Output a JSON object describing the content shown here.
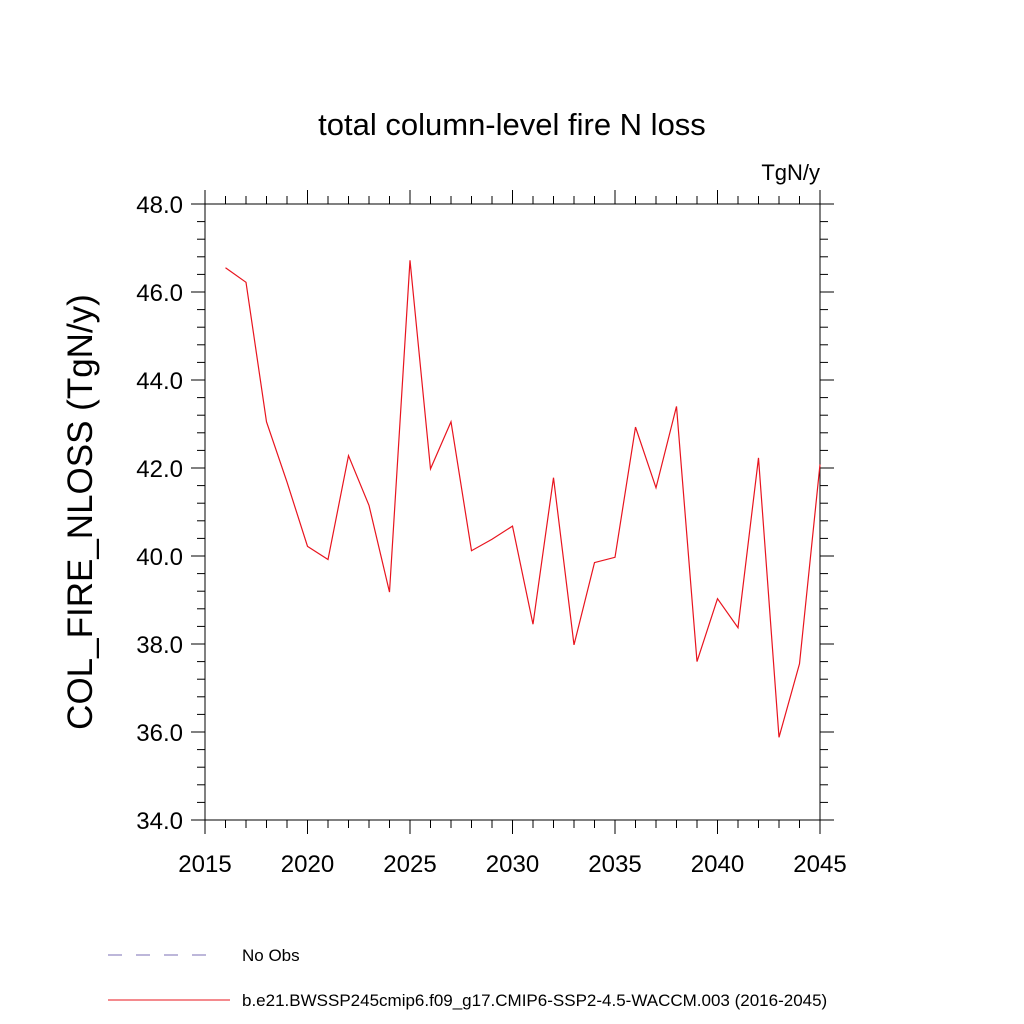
{
  "chart_data": {
    "type": "line",
    "title": "total column-level fire N loss",
    "units": "TgN/y",
    "ylabel": "COL_FIRE_NLOSS  (TgN/y)",
    "xlabel": "",
    "xlim": [
      2015,
      2045
    ],
    "ylim": [
      34.0,
      48.0
    ],
    "x_ticks": [
      2015,
      2020,
      2025,
      2030,
      2035,
      2040,
      2045
    ],
    "x_tick_labels": [
      "2015",
      "2020",
      "2025",
      "2030",
      "2035",
      "2040",
      "2045"
    ],
    "y_ticks": [
      34.0,
      36.0,
      38.0,
      40.0,
      42.0,
      44.0,
      46.0,
      48.0
    ],
    "y_tick_labels": [
      "34.0",
      "36.0",
      "38.0",
      "40.0",
      "42.0",
      "44.0",
      "46.0",
      "48.0"
    ],
    "grid": false,
    "legend_position": "bottom",
    "series": [
      {
        "name": "b.e21.BWSSP245cmip6.f09_g17.CMIP6-SSP2-4.5-WACCM.003 (2016-2045)",
        "color": "#e8141e",
        "dash": "solid",
        "x": [
          2016,
          2017,
          2018,
          2019,
          2020,
          2021,
          2022,
          2023,
          2024,
          2025,
          2026,
          2027,
          2028,
          2029,
          2030,
          2031,
          2032,
          2033,
          2034,
          2035,
          2036,
          2037,
          2038,
          2039,
          2040,
          2041,
          2042,
          2043,
          2044,
          2045
        ],
        "y": [
          46.55,
          46.22,
          43.05,
          41.68,
          40.22,
          39.92,
          42.28,
          41.15,
          39.18,
          46.72,
          41.98,
          43.05,
          40.12,
          40.38,
          40.68,
          38.45,
          41.78,
          37.98,
          39.85,
          39.97,
          42.93,
          41.55,
          43.4,
          37.6,
          39.03,
          38.37,
          42.23,
          35.88,
          37.55,
          42.08
        ]
      }
    ],
    "legend": [
      {
        "label": "No Obs",
        "color": "#7b6fb5",
        "dash": "dashed"
      },
      {
        "label": "b.e21.BWSSP245cmip6.f09_g17.CMIP6-SSP2-4.5-WACCM.003 (2016-2045)",
        "color": "#e8141e",
        "dash": "solid"
      }
    ]
  }
}
